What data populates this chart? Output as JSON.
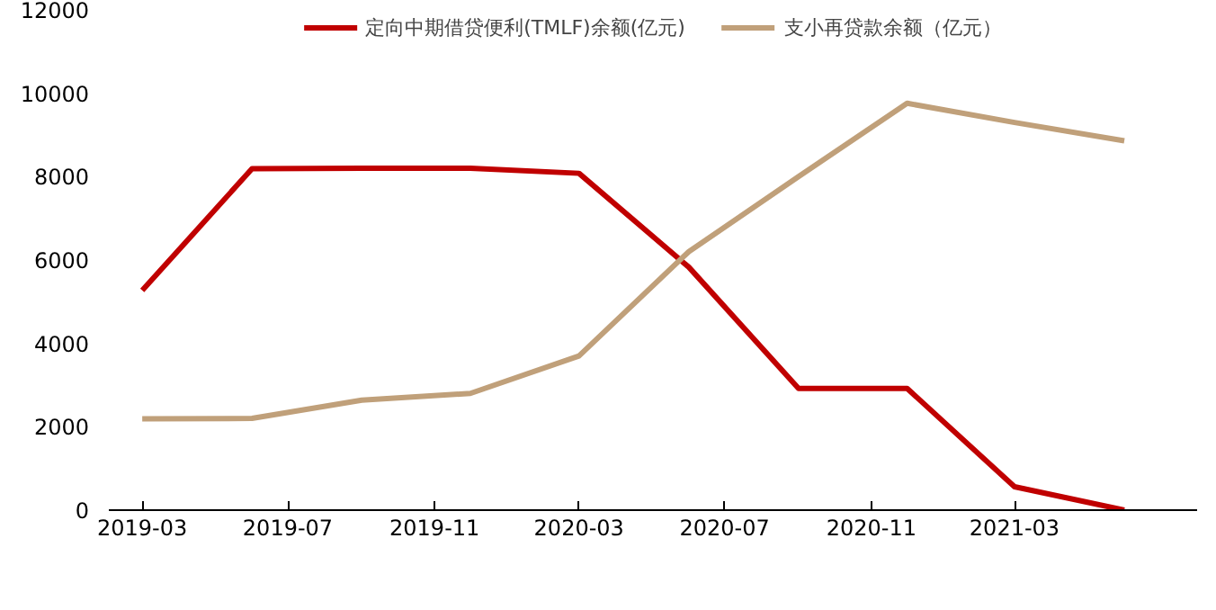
{
  "chart_data": {
    "type": "line",
    "x": [
      "2019-03",
      "2019-06",
      "2019-09",
      "2019-12",
      "2020-03",
      "2020-06",
      "2020-09",
      "2020-12",
      "2021-03",
      "2021-06"
    ],
    "series": [
      {
        "name": "定向中期借贷便利(TMLF)余额(亿元)",
        "color": "#c00000",
        "values": [
          5270,
          8190,
          8200,
          8200,
          8080,
          5830,
          2920,
          2920,
          560,
          0
        ]
      },
      {
        "name": "支小再贷款余额（亿元）",
        "color": "#c0a07a",
        "values": [
          2190,
          2200,
          2640,
          2800,
          3700,
          6200,
          8000,
          9760,
          9300,
          8860
        ]
      }
    ],
    "xlim": [
      "2019-02",
      "2021-08"
    ],
    "xticks": [
      "2019-03",
      "2019-07",
      "2019-11",
      "2020-03",
      "2020-07",
      "2020-11",
      "2021-03"
    ],
    "ylim": [
      0,
      12000
    ],
    "yticks": [
      0,
      2000,
      4000,
      6000,
      8000,
      10000,
      12000
    ],
    "grid": false,
    "legend": "top",
    "marker": "none",
    "line_style": "solid"
  }
}
